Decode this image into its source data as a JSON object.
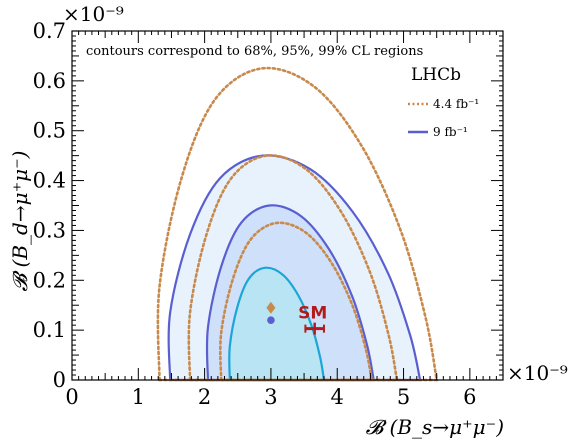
{
  "chart_data": {
    "type": "contour",
    "title": "",
    "xlabel": "𝓑 (B_s→μ⁺μ⁻)",
    "ylabel": "𝓑 (B_d→μ⁺μ⁻)",
    "x_exponent_label": "×10⁻⁹",
    "y_exponent_label": "×10⁻⁹",
    "xlim": [
      0,
      6.5
    ],
    "ylim": [
      0,
      0.7
    ],
    "x_ticks": [
      "0",
      "1",
      "2",
      "3",
      "4",
      "5",
      "6"
    ],
    "y_ticks": [
      "0",
      "0.1",
      "0.2",
      "0.3",
      "0.4",
      "0.5",
      "0.6",
      "0.7"
    ],
    "annotation": "contours correspond to 68%, 95%, 99% CL regions",
    "legend": {
      "placement": "top-right",
      "title": "LHCb",
      "entries": [
        {
          "label": "4.4 fb⁻¹",
          "color": "#c8894a",
          "style": "dotted"
        },
        {
          "label": "9 fb⁻¹",
          "color": "#5a5fd0",
          "style": "solid"
        }
      ]
    },
    "series": [
      {
        "dataset": "9 fb⁻¹",
        "best_fit": [
          3.0,
          0.12
        ],
        "contours": [
          {
            "cl": "99%",
            "x_range": [
              1.48,
              5.25
            ],
            "y_max": 0.45,
            "fill": "#e8f2fd",
            "stroke": "#5a5fd0"
          },
          {
            "cl": "95%",
            "x_range": [
              2.05,
              4.55
            ],
            "y_max": 0.35,
            "fill": "#cfe0fa",
            "stroke": "#5a5fd0"
          },
          {
            "cl": "68%",
            "x_range": [
              2.38,
              3.8
            ],
            "y_max": 0.225,
            "fill": "#b8e4f3",
            "stroke": "#1aa6d6"
          }
        ]
      },
      {
        "dataset": "4.4 fb⁻¹",
        "best_fit": [
          3.0,
          0.145
        ],
        "contours": [
          {
            "cl": "99%",
            "x_range": [
              1.32,
              5.5
            ],
            "y_max": 0.625
          },
          {
            "cl": "95%",
            "x_range": [
              1.78,
              4.9
            ],
            "y_max": 0.45
          },
          {
            "cl": "68%",
            "x_range": [
              2.25,
              4.52
            ],
            "y_max": 0.315
          }
        ]
      }
    ],
    "sm_point": {
      "label": "SM",
      "x": 3.66,
      "y": 0.103,
      "x_err": 0.14,
      "color": "#b31b1b"
    }
  }
}
